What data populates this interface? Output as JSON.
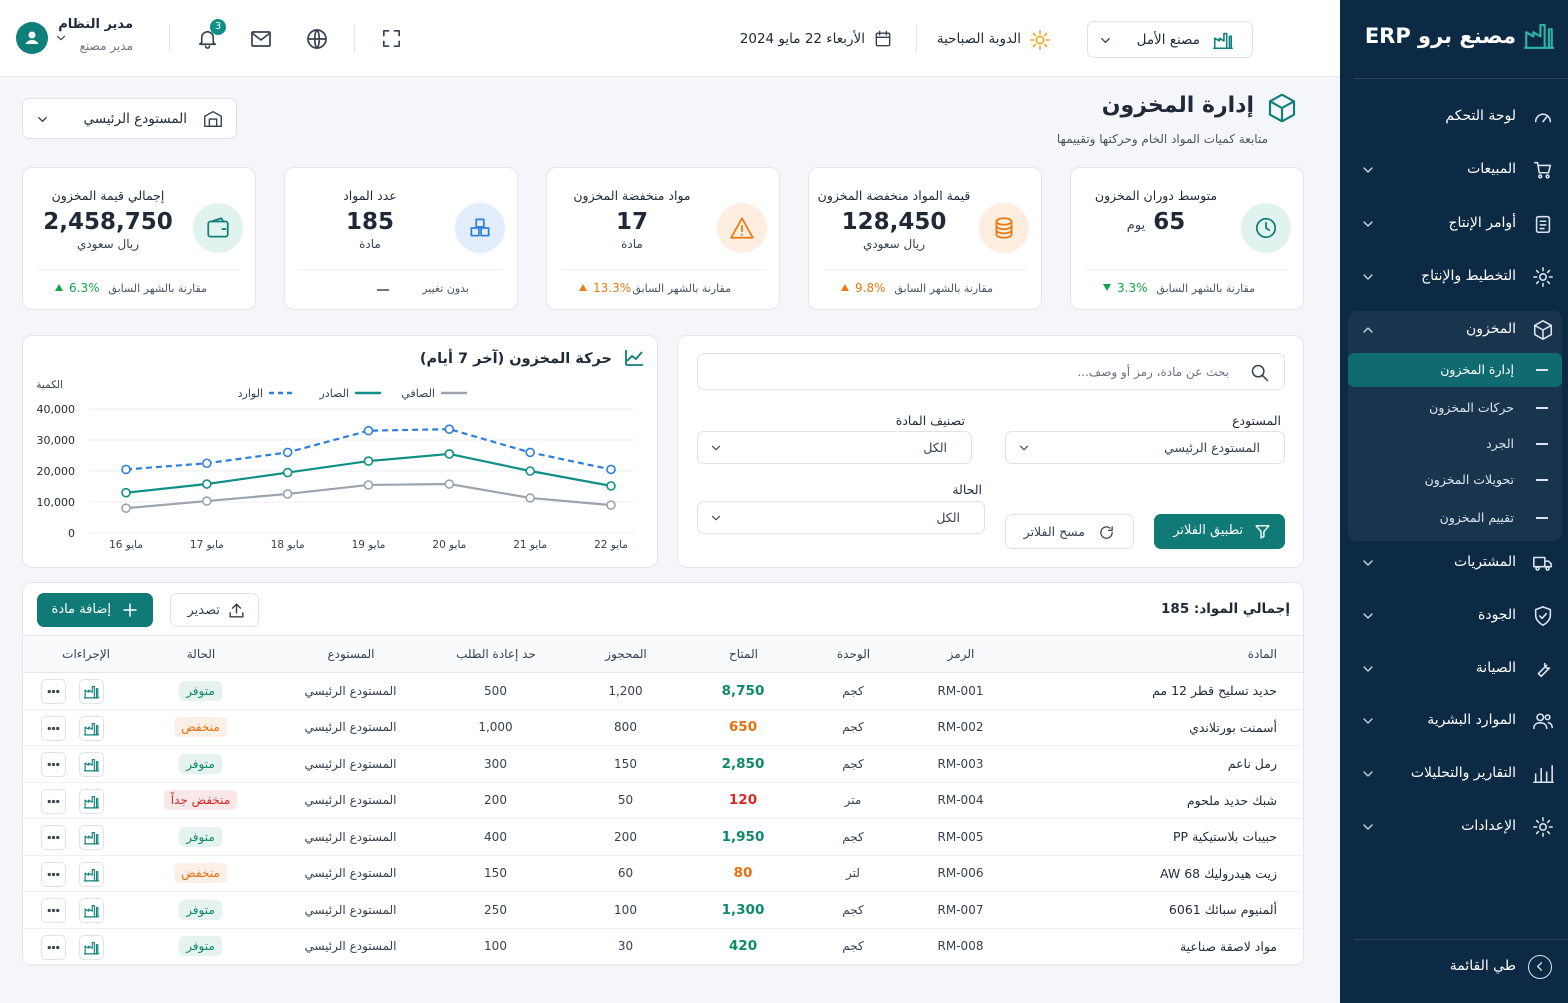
{
  "sidebar": {
    "brand": "مصنع برو ERP",
    "menu_top": [
      "لوحة التحكم",
      "المبيعات",
      "أوامر الإنتاج",
      "التخطيط والإنتاج"
    ],
    "inventory": {
      "label": "المخزون",
      "items": [
        "إدارة المخزون",
        "حركات المخزون",
        "الجرد",
        "تحويلات المخزون",
        "تقييم المخزون"
      ]
    },
    "menu_bottom": [
      "المشتريات",
      "الجودة",
      "الصيانة",
      "الموارد البشرية",
      "التقارير والتحليلات",
      "الإعدادات"
    ],
    "collapse": "طي القائمة"
  },
  "header": {
    "user_name": "مدير النظام",
    "user_role": "مدير مصنع",
    "notifications": 3,
    "date": "الأربعاء 22 مايو 2024",
    "shift": "الدوبة الصباحية",
    "factory": "مصنع الأمل"
  },
  "page": {
    "title": "إدارة المخزون",
    "subtitle": "متابعة كميات المواد الخام وحركتها وتقييمها",
    "warehouse": "المستودع الرئيسي"
  },
  "kpis": [
    {
      "title": "متوسط دوران المخزون",
      "value": "65",
      "unit": "يوم",
      "compare": "مقارنة بالشهر السابق",
      "change": "3.3%",
      "trend": "down",
      "color": "#16a34a",
      "icon_bg": "#e1f3ee",
      "icon_color": "#0f7f7a"
    },
    {
      "title": "قيمة المواد منخفضة المخزون",
      "value": "128,450",
      "unit": "ريال سعودي",
      "compare": "مقارنة بالشهر السابق",
      "change": "9.8%",
      "trend": "up",
      "color": "#ea7a12",
      "icon_bg": "#fdeee0",
      "icon_color": "#e8790f"
    },
    {
      "title": "مواد منخفضة المخزون",
      "value": "17",
      "unit": "مادة",
      "compare": "مقارنة بالشهر السابق",
      "change": "13.3%",
      "trend": "up",
      "color": "#ea7a12",
      "icon_bg": "#fdeee0",
      "icon_color": "#e8790f"
    },
    {
      "title": "عدد المواد",
      "value": "185",
      "unit": "مادة",
      "compare": "بدون تغيير",
      "trend": "none",
      "color": "#6b7280",
      "icon_bg": "#e3eefc",
      "icon_color": "#2f7fd8"
    },
    {
      "title": "إجمالي قيمة المخزون",
      "value": "2,458,750",
      "unit": "ريال سعودي",
      "compare": "مقارنة بالشهر السابق",
      "change": "6.3%",
      "trend": "up",
      "color": "#16a34a",
      "icon_bg": "#e1f3ee",
      "icon_color": "#0f7f7a"
    }
  ],
  "filters": {
    "search_placeholder": "بحث عن مادة، رمز أو وصف...",
    "warehouse_label": "المستودع",
    "warehouse_value": "المستودع الرئيسي",
    "category_label": "تصنيف المادة",
    "category_value": "الكل",
    "status_label": "الحالة",
    "status_value": "الكل",
    "apply": "تطبيق الفلاتر",
    "clear": "مسح الفلاتر"
  },
  "chart_data": {
    "type": "line",
    "title": "حركة المخزون (آخر 7 أيام)",
    "y_label": "الكمية",
    "categories": [
      "16 مايو",
      "17 مايو",
      "18 مايو",
      "19 مايو",
      "20 مايو",
      "21 مايو",
      "22 مايو"
    ],
    "series": [
      {
        "name": "الوارد",
        "color": "#2f7fd8",
        "dashed": true,
        "values": [
          20500,
          22500,
          26000,
          33000,
          33500,
          26000,
          20500
        ]
      },
      {
        "name": "الصادر",
        "color": "#0f8f86",
        "dashed": false,
        "values": [
          13000,
          15800,
          19500,
          23200,
          25500,
          20000,
          15200
        ]
      },
      {
        "name": "الصافي",
        "color": "#9ca3af",
        "dashed": false,
        "values": [
          8000,
          10300,
          12600,
          15500,
          15800,
          11300,
          9000
        ]
      }
    ],
    "ylim": [
      0,
      40000
    ],
    "yticks": [
      0,
      {
        "value": 10000,
        "label": "10,000"
      },
      {
        "value": 20000,
        "label": "20,000"
      },
      {
        "value": 30000,
        "label": "30,000"
      },
      {
        "value": 40000,
        "label": "40,000"
      }
    ],
    "grid": true
  },
  "table": {
    "total": "إجمالي المواد: 185",
    "add": "إضافة مادة",
    "export": "تصدير",
    "columns": [
      "المادة",
      "الرمز",
      "الوحدة",
      "المتاح",
      "المحجوز",
      "حد إعادة الطلب",
      "المستودع",
      "الحالة",
      "الإجراءات"
    ],
    "rows": [
      {
        "cells": [
          "حديد تسليح قطر 12 مم",
          "RM-001",
          "كجم",
          "8,750",
          "1,200",
          "500",
          "المستودع الرئيسي",
          "متوفر"
        ],
        "color": "#0f8a6a"
      },
      {
        "cells": [
          "أسمنت بورتلاندي",
          "RM-002",
          "كجم",
          "650",
          "800",
          "1,000",
          "المستودع الرئيسي",
          "منخفض"
        ],
        "color": "#e8700e"
      },
      {
        "cells": [
          "رمل ناعم",
          "RM-003",
          "كجم",
          "2,850",
          "150",
          "300",
          "المستودع الرئيسي",
          "متوفر"
        ],
        "color": "#0f8a6a"
      },
      {
        "cells": [
          "شبك حديد ملحوم",
          "RM-004",
          "متر",
          "120",
          "50",
          "200",
          "المستودع الرئيسي",
          "منخفض جداً"
        ],
        "color": "#d42a2a"
      },
      {
        "cells": [
          "حبيبات بلاستيكية PP",
          "RM-005",
          "كجم",
          "1,950",
          "200",
          "400",
          "المستودع الرئيسي",
          "متوفر"
        ],
        "color": "#0f8a6a"
      },
      {
        "cells": [
          "زيت هيدروليك AW 68",
          "RM-006",
          "لتر",
          "80",
          "60",
          "150",
          "المستودع الرئيسي",
          "منخفض"
        ],
        "color": "#e8700e"
      },
      {
        "cells": [
          "ألمنيوم سبائك 6061",
          "RM-007",
          "كجم",
          "1,300",
          "100",
          "250",
          "المستودع الرئيسي",
          "متوفر"
        ],
        "color": "#0f8a6a"
      },
      {
        "cells": [
          "مواد لاصقة صناعية",
          "RM-008",
          "كجم",
          "420",
          "30",
          "100",
          "المستودع الرئيسي",
          "متوفر"
        ],
        "color": "#0f8a6a"
      }
    ]
  }
}
